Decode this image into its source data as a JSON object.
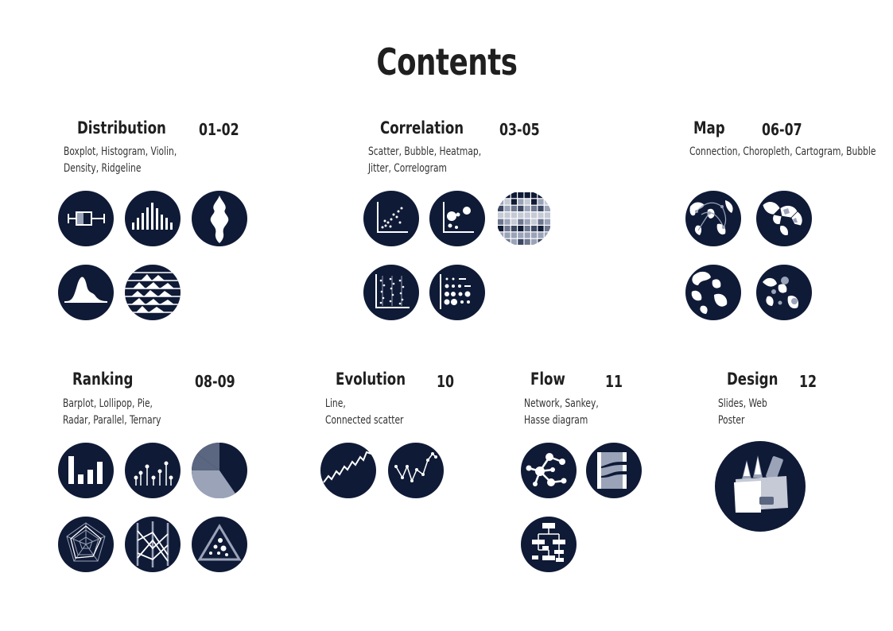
{
  "page": {
    "title": "Contents"
  },
  "colors": {
    "navy": "#0f1a36",
    "white": "#ffffff",
    "gray": "#9aa3b8"
  },
  "sections": {
    "distribution": {
      "title": "Distribution",
      "range": "01-02",
      "desc_line1": "Boxplot,  Histogram,  Violin,",
      "desc_line2": "Density,  Ridgeline",
      "icons": [
        "boxplot-icon",
        "histogram-icon",
        "violin-icon",
        "density-icon",
        "ridgeline-icon"
      ]
    },
    "correlation": {
      "title": "Correlation",
      "range": "03-05",
      "desc_line1": "Scatter,  Bubble,  Heatmap,",
      "desc_line2": "Jitter,  Correlogram",
      "icons": [
        "scatter-icon",
        "bubble-icon",
        "heatmap-icon",
        "jitter-icon",
        "correlogram-icon"
      ]
    },
    "map": {
      "title": "Map",
      "range": "06-07",
      "desc_line1": "Connection,   Choropleth, Cartogram,  Bubble",
      "icons": [
        "connection-map-icon",
        "choropleth-map-icon",
        "cartogram-map-icon",
        "bubble-map-icon"
      ]
    },
    "ranking": {
      "title": "Ranking",
      "range": "08-09",
      "desc_line1": "Barplot,  Lollipop,  Pie,",
      "desc_line2": "Radar,  Parallel,  Ternary",
      "icons": [
        "barplot-icon",
        "lollipop-icon",
        "pie-icon",
        "radar-icon",
        "parallel-icon",
        "ternary-icon"
      ]
    },
    "evolution": {
      "title": "Evolution",
      "range": "10",
      "desc_line1": "Line,",
      "desc_line2": "Connected scatter",
      "icons": [
        "line-chart-icon",
        "connected-scatter-icon"
      ]
    },
    "flow": {
      "title": "Flow",
      "range": "11",
      "desc_line1": "Network,  Sankey,",
      "desc_line2": "Hasse diagram",
      "icons": [
        "network-icon",
        "sankey-icon",
        "hasse-diagram-icon"
      ]
    },
    "design": {
      "title": "Design",
      "range": "12",
      "desc_line1": "Slides,  Web",
      "desc_line2": "Poster",
      "icons": [
        "design-tools-icon"
      ]
    }
  }
}
